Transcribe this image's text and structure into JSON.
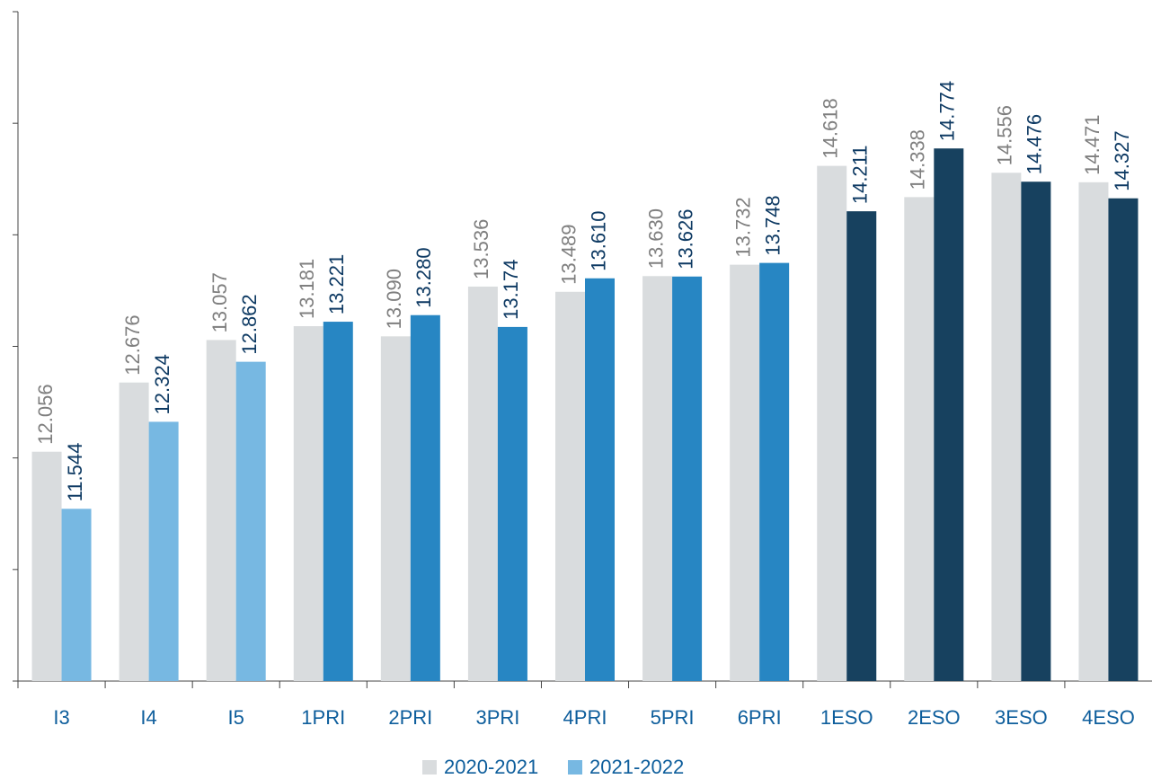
{
  "chart_data": {
    "type": "bar",
    "categories": [
      "I3",
      "I4",
      "I5",
      "1PRI",
      "2PRI",
      "3PRI",
      "4PRI",
      "5PRI",
      "6PRI",
      "1ESO",
      "2ESO",
      "3ESO",
      "4ESO"
    ],
    "series": [
      {
        "name": "2020-2021",
        "color": "#d9dcde",
        "label_color": "#7f7f7f",
        "values": [
          12.056,
          12.676,
          13.057,
          13.181,
          13.09,
          13.536,
          13.489,
          13.63,
          13.732,
          14.618,
          14.338,
          14.556,
          14.471
        ],
        "value_labels": [
          "12.056",
          "12.676",
          "13.057",
          "13.181",
          "13.090",
          "13.536",
          "13.489",
          "13.630",
          "13.732",
          "14.618",
          "14.338",
          "14.556",
          "14.471"
        ]
      },
      {
        "name": "2021-2022",
        "color": "#77b8e2",
        "label_color": "#0e3a63",
        "colors": [
          "#77b8e2",
          "#77b8e2",
          "#77b8e2",
          "#2786c3",
          "#2786c3",
          "#2786c3",
          "#2786c3",
          "#2786c3",
          "#2786c3",
          "#17415f",
          "#17415f",
          "#17415f",
          "#17415f"
        ],
        "values": [
          11.544,
          12.324,
          12.862,
          13.221,
          13.28,
          13.174,
          13.61,
          13.626,
          13.748,
          14.211,
          14.774,
          14.476,
          14.327
        ],
        "value_labels": [
          "11.544",
          "12.324",
          "12.862",
          "13.221",
          "13.280",
          "13.174",
          "13.610",
          "13.626",
          "13.748",
          "14.211",
          "14.774",
          "14.476",
          "14.327"
        ]
      }
    ],
    "ylim": [
      10,
      16
    ],
    "yticks": [
      10,
      11,
      12,
      13,
      14,
      15,
      16
    ],
    "legend": "bottom"
  }
}
